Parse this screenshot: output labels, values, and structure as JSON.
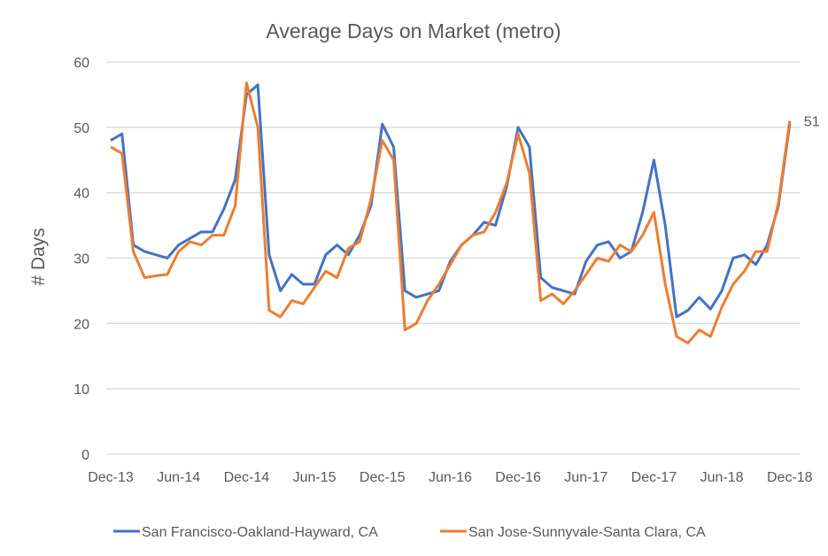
{
  "chart_data": {
    "type": "line",
    "title": "Average Days on Market (metro)",
    "xlabel": "",
    "ylabel": "# Days",
    "ylim": [
      0,
      60
    ],
    "yticks": [
      0,
      10,
      20,
      30,
      40,
      50,
      60
    ],
    "grid": true,
    "legend_position": "bottom",
    "x_tick_labels": [
      "Dec-13",
      "Jun-14",
      "Dec-14",
      "Jun-15",
      "Dec-15",
      "Jun-16",
      "Dec-16",
      "Jun-17",
      "Dec-17",
      "Jun-18",
      "Dec-18"
    ],
    "x_start": "Dec-13",
    "x_interval": "monthly",
    "series": [
      {
        "name": "San Francisco-Oakland-Hayward, CA",
        "color": "#4472C4",
        "values": [
          48,
          49,
          32,
          31,
          30.5,
          30,
          32,
          33,
          34,
          34,
          37.5,
          42,
          55,
          56.5,
          30.5,
          25,
          27.5,
          26,
          26,
          30.5,
          32,
          30.5,
          33.5,
          38,
          50.5,
          47,
          25,
          24,
          24.5,
          25,
          29.5,
          32,
          33.5,
          35.5,
          35,
          41,
          50,
          47,
          27,
          25.5,
          25,
          24.5,
          29.5,
          32,
          32.5,
          30,
          31,
          37,
          45,
          35,
          21,
          22,
          24,
          22.2,
          25,
          30,
          30.5,
          29,
          32,
          38,
          50.5
        ]
      },
      {
        "name": "San Jose-Sunnyvale-Santa Clara, CA",
        "color": "#ED7D31",
        "values": [
          47,
          46,
          31,
          27,
          27.3,
          27.5,
          31,
          32.5,
          32,
          33.5,
          33.5,
          38,
          56.8,
          50,
          22,
          21,
          23.5,
          23,
          25.5,
          28,
          27,
          31.5,
          32.5,
          39,
          48,
          45,
          19,
          20,
          23.5,
          26,
          29,
          32,
          33.5,
          34,
          37,
          41.5,
          49,
          43,
          23.5,
          24.5,
          23,
          25,
          27.5,
          30,
          29.5,
          32,
          31,
          33.5,
          37,
          26,
          18,
          17,
          19,
          18,
          22.5,
          26,
          28,
          31,
          31,
          38.5,
          51
        ]
      }
    ],
    "annotations": [
      {
        "series": 1,
        "point": "Dec-18",
        "label": "51"
      }
    ]
  }
}
